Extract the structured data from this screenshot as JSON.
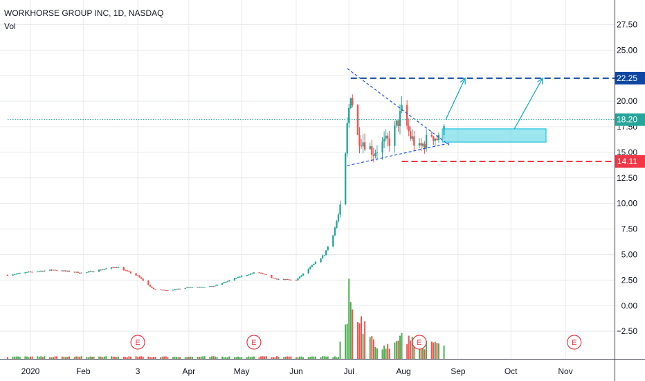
{
  "legend": {
    "symbol_line": "WORKHORSE GROUP INC, 1D, NASDAQ",
    "volume_label": "Vol"
  },
  "chart_data": {
    "type": "candlestick",
    "ylim": [
      -5.2,
      29.9
    ],
    "y_ticks": [
      -2.5,
      0,
      2.5,
      5,
      7.5,
      10,
      12.5,
      15,
      17.5,
      20,
      22.5,
      25,
      27.5
    ],
    "y_tick_labels": [
      "−2.50",
      "0.00",
      "2.50",
      "5.00",
      "7.50",
      "10.00",
      "12.50",
      "15.00",
      "17.50",
      "20.00",
      "22.50",
      "25.00",
      "27.50"
    ],
    "x_ticks": [
      {
        "date": "2020-01-02",
        "label": "2020"
      },
      {
        "date": "2020-02-01",
        "label": "Feb"
      },
      {
        "date": "2020-03-03",
        "label": "3"
      },
      {
        "date": "2020-04-01",
        "label": "Apr"
      },
      {
        "date": "2020-05-01",
        "label": "May"
      },
      {
        "date": "2020-06-01",
        "label": "Jun"
      },
      {
        "date": "2020-07-01",
        "label": "Jul"
      },
      {
        "date": "2020-08-01",
        "label": "Aug"
      },
      {
        "date": "2020-09-01",
        "label": "Sep"
      },
      {
        "date": "2020-10-01",
        "label": "Oct"
      },
      {
        "date": "2020-11-01",
        "label": "Nov"
      }
    ],
    "price_series": [
      {
        "date": "2019-12-20",
        "close": 3.0
      },
      {
        "date": "2020-01-02",
        "close": 3.3
      },
      {
        "date": "2020-01-15",
        "close": 3.5
      },
      {
        "date": "2020-02-01",
        "close": 3.2
      },
      {
        "date": "2020-02-20",
        "close": 3.8
      },
      {
        "date": "2020-03-03",
        "close": 2.9
      },
      {
        "date": "2020-03-12",
        "close": 1.6
      },
      {
        "date": "2020-03-20",
        "close": 1.5
      },
      {
        "date": "2020-04-01",
        "close": 1.8
      },
      {
        "date": "2020-04-15",
        "close": 1.9
      },
      {
        "date": "2020-05-01",
        "close": 2.9
      },
      {
        "date": "2020-05-10",
        "close": 3.3
      },
      {
        "date": "2020-05-20",
        "close": 2.6
      },
      {
        "date": "2020-06-01",
        "close": 2.5
      },
      {
        "date": "2020-06-10",
        "close": 3.9
      },
      {
        "date": "2020-06-17",
        "close": 5.0
      },
      {
        "date": "2020-06-22",
        "close": 7.0
      },
      {
        "date": "2020-06-26",
        "close": 9.5
      },
      {
        "date": "2020-06-29",
        "close": 14.5
      },
      {
        "date": "2020-06-30",
        "close": 17.5
      },
      {
        "date": "2020-07-02",
        "close": 21.0
      },
      {
        "date": "2020-07-06",
        "close": 16.5
      },
      {
        "date": "2020-07-10",
        "close": 16.0
      },
      {
        "date": "2020-07-15",
        "close": 15.0
      },
      {
        "date": "2020-07-20",
        "close": 15.8
      },
      {
        "date": "2020-07-25",
        "close": 16.2
      },
      {
        "date": "2020-07-31",
        "close": 19.0
      },
      {
        "date": "2020-08-05",
        "close": 16.5
      },
      {
        "date": "2020-08-10",
        "close": 15.3
      },
      {
        "date": "2020-08-17",
        "close": 16.8
      },
      {
        "date": "2020-08-21",
        "close": 16.2
      },
      {
        "date": "2020-08-24",
        "close": 18.2
      }
    ],
    "volume_series": [
      {
        "date": "2020-06-26",
        "value": 0.28
      },
      {
        "date": "2020-06-29",
        "value": 0.55
      },
      {
        "date": "2020-06-30",
        "value": 0.75
      },
      {
        "date": "2020-07-01",
        "value": 1.0
      },
      {
        "date": "2020-07-02",
        "value": 0.85
      },
      {
        "date": "2020-07-06",
        "value": 0.55
      },
      {
        "date": "2020-07-08",
        "value": 0.6
      },
      {
        "date": "2020-07-10",
        "value": 0.45
      },
      {
        "date": "2020-07-13",
        "value": 0.3
      },
      {
        "date": "2020-07-16",
        "value": 0.25
      },
      {
        "date": "2020-07-20",
        "value": 0.18
      },
      {
        "date": "2020-07-24",
        "value": 0.2
      },
      {
        "date": "2020-07-31",
        "value": 0.3
      },
      {
        "date": "2020-08-03",
        "value": 0.28
      },
      {
        "date": "2020-08-07",
        "value": 0.26
      },
      {
        "date": "2020-08-12",
        "value": 0.22
      },
      {
        "date": "2020-08-18",
        "value": 0.2
      },
      {
        "date": "2020-08-24",
        "value": 0.22
      }
    ],
    "earnings_markers": [
      {
        "date": "2020-03-03",
        "label": "E"
      },
      {
        "date": "2020-05-08",
        "label": "E"
      },
      {
        "date": "2020-08-10",
        "label": "E"
      },
      {
        "date": "2020-11-06",
        "label": "E"
      }
    ],
    "levels": [
      {
        "price": 22.25,
        "label": "22.25",
        "color": "#0d47a1",
        "style": "dashed",
        "start": "2020-07-02"
      },
      {
        "price": 18.2,
        "label": "18.20",
        "color": "#26a69a",
        "style": "dotted",
        "start": "2019-12-20"
      },
      {
        "price": 14.11,
        "label": "14.11",
        "color": "#f23645",
        "style": "dashed",
        "start": "2020-07-31"
      }
    ],
    "triangle_upper": [
      {
        "date": "2020-06-30",
        "price": 23.2
      },
      {
        "date": "2020-08-27",
        "price": 15.7
      }
    ],
    "triangle_lower": [
      {
        "date": "2020-06-30",
        "price": 13.7
      },
      {
        "date": "2020-08-27",
        "price": 15.9
      }
    ],
    "target_zone": {
      "x0": "2020-08-23",
      "x1": "2020-10-21",
      "y0": 16.0,
      "y1": 17.3,
      "color": "#4dd0e1"
    },
    "projection_arrows": [
      {
        "from": {
          "date": "2020-08-25",
          "price": 18.2
        },
        "to": {
          "date": "2020-09-05",
          "price": 22.25
        }
      },
      {
        "from": {
          "date": "2020-10-03",
          "price": 17.3
        },
        "to": {
          "date": "2020-10-19",
          "price": 22.25
        }
      }
    ],
    "colors": {
      "up": "#26a69a",
      "down": "#ef5350",
      "volume_up": "#4caf50",
      "volume_down": "#ef5350",
      "grid": "#e8eaed",
      "axis_text": "#131722"
    }
  }
}
